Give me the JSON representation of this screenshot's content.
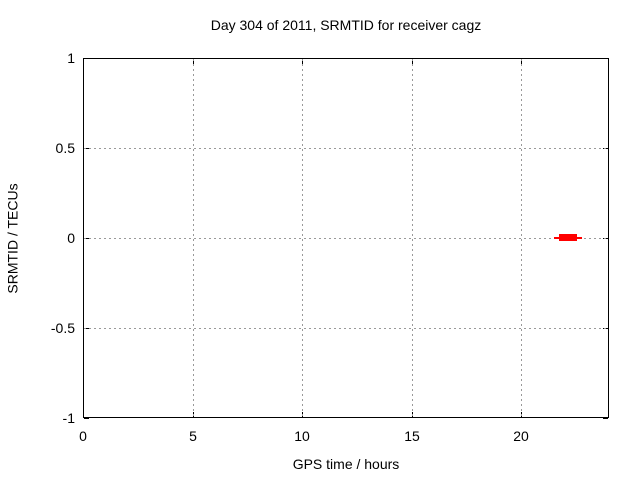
{
  "chart_data": {
    "type": "line",
    "title": "Day 304 of 2011, SRMTID for receiver cagz",
    "xlabel": "GPS time / hours",
    "ylabel": "SRMTID / TECUs",
    "xlim": [
      0,
      24
    ],
    "ylim": [
      -1,
      1
    ],
    "x_ticks": [
      "0",
      "5",
      "10",
      "15",
      "20"
    ],
    "y_ticks": [
      "-1",
      "-0.5",
      "0",
      "0.5",
      "1"
    ],
    "grid": true,
    "legend": "none",
    "background_color": "#ffffff",
    "border_color": "#000000",
    "grid_color": "#999999",
    "series": [
      {
        "name": "SRMTID",
        "color": "#ff0000",
        "description": "Short red trace hugging zero TECUs near the end of the day; thin lead-in/out with a thicker oscillating core",
        "segments": [
          {
            "x_start": 21.5,
            "x_end": 22.8,
            "y_min": -0.006,
            "y_max": 0.006
          },
          {
            "x_start": 21.7,
            "x_end": 22.5,
            "y_min": -0.02,
            "y_max": 0.02
          }
        ]
      }
    ]
  }
}
